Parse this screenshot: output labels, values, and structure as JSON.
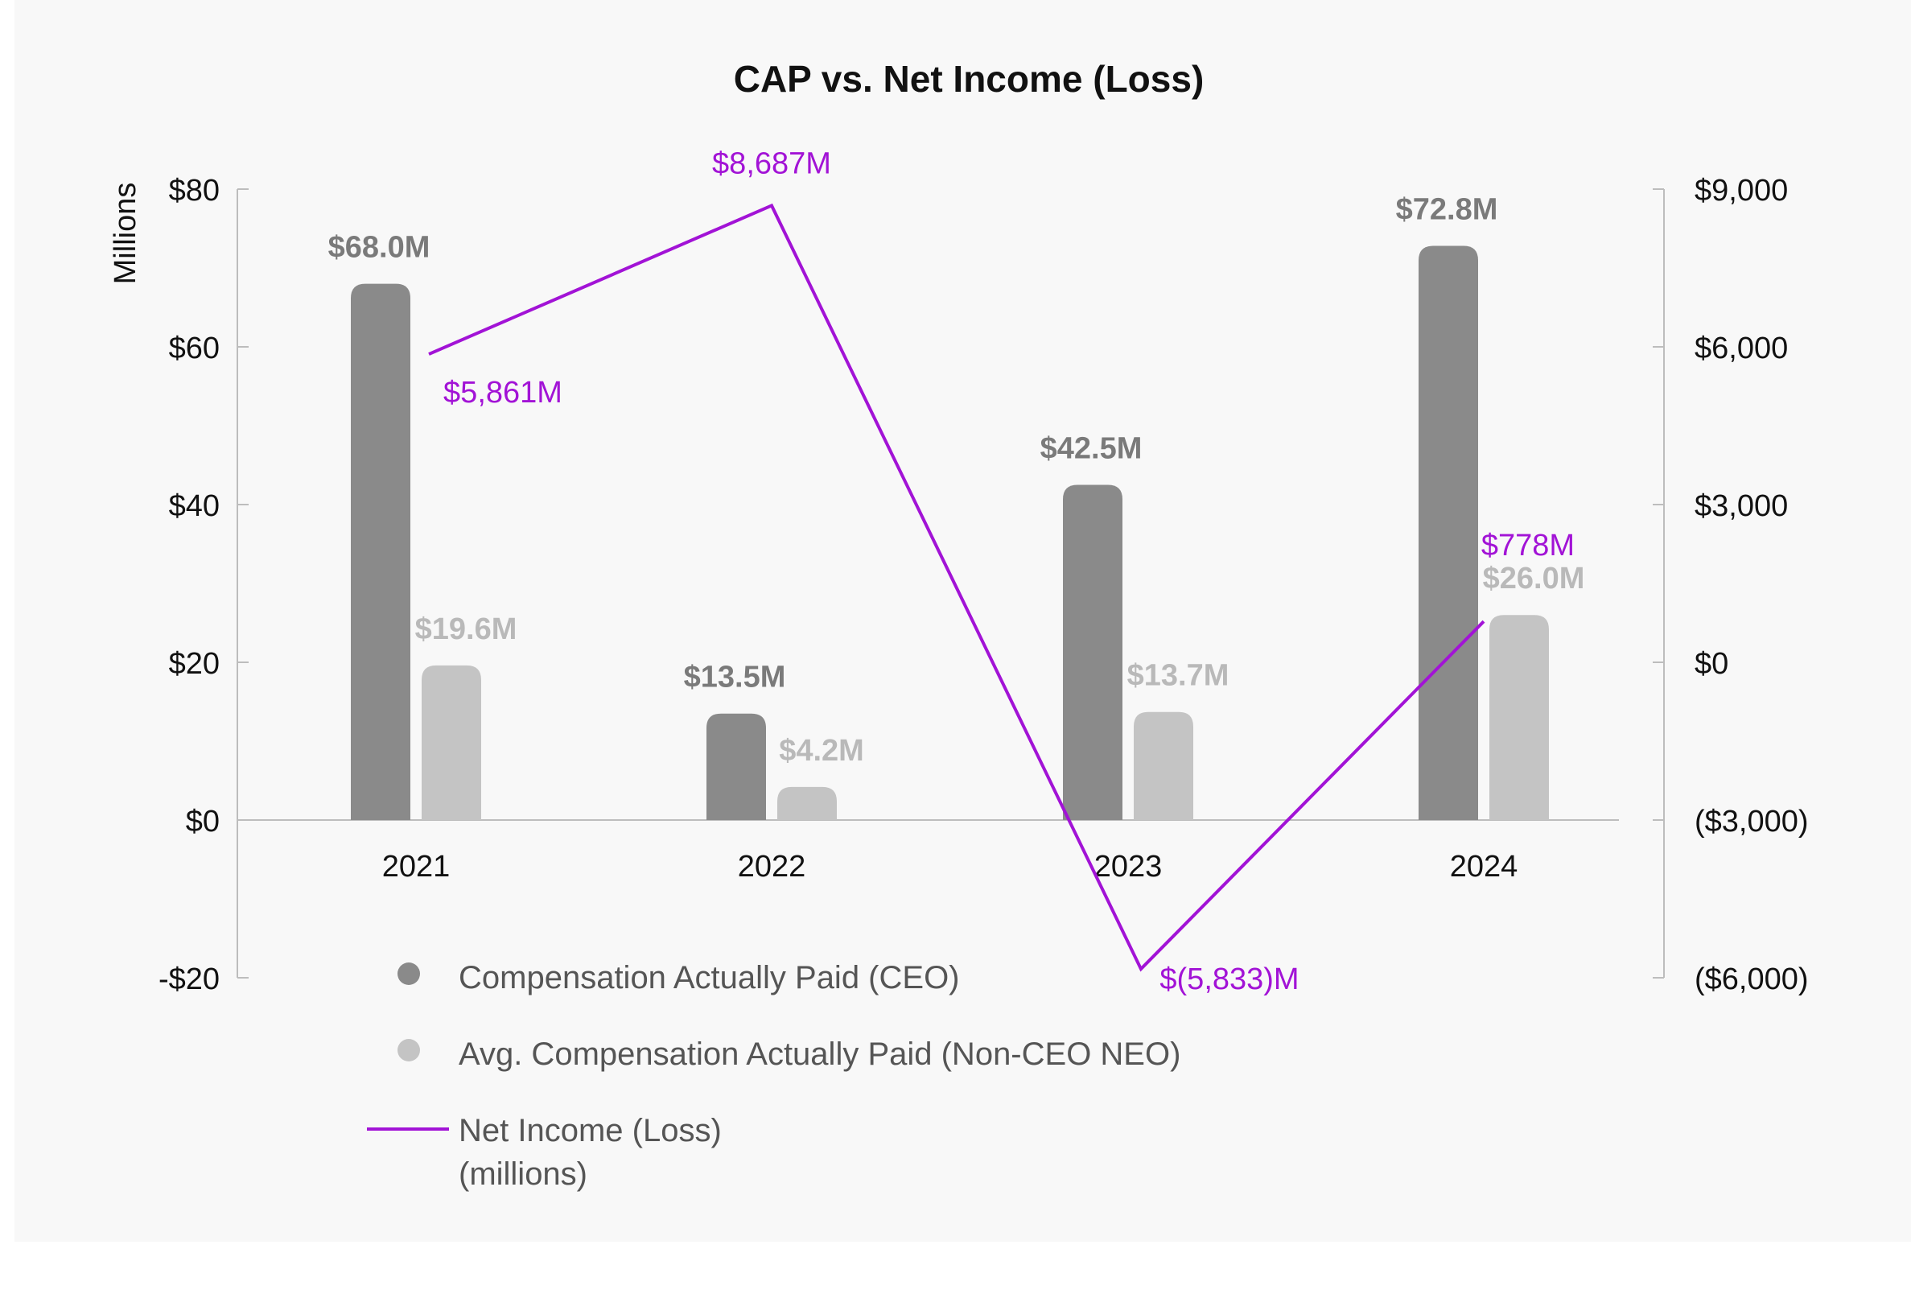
{
  "chart_data": {
    "type": "bar",
    "title": "CAP vs. Net Income (Loss)",
    "ylabel": "Millions",
    "categories": [
      "2021",
      "2022",
      "2023",
      "2024"
    ],
    "ylim": [
      -20,
      80
    ],
    "y_ticks": [
      -20,
      0,
      20,
      40,
      60,
      80
    ],
    "y_tick_labels": [
      "-$20",
      "$0",
      "$20",
      "$40",
      "$60",
      "$80"
    ],
    "y2lim": [
      -6000,
      9000
    ],
    "y2_ticks": [
      -6000,
      -3000,
      0,
      3000,
      6000,
      9000
    ],
    "y2_tick_labels": [
      "($6,000)",
      "($3,000)",
      "$0",
      "$3,000",
      "$6,000",
      "$9,000"
    ],
    "series": [
      {
        "name": "Compensation Actually Paid (CEO)",
        "kind": "bar",
        "axis": "left",
        "color": "#8a8a8a",
        "values": [
          68.0,
          13.5,
          42.5,
          72.8
        ],
        "labels": [
          "$68.0M",
          "$13.5M",
          "$42.5M",
          "$72.8M"
        ]
      },
      {
        "name": "Avg. Compensation Actually Paid (Non-CEO NEO)",
        "kind": "bar",
        "axis": "left",
        "color": "#c4c4c4",
        "values": [
          19.6,
          4.2,
          13.7,
          26.0
        ],
        "labels": [
          "$19.6M",
          "$4.2M",
          "$13.7M",
          "$26.0M"
        ]
      },
      {
        "name": "Net Income (Loss) (millions)",
        "kind": "line",
        "axis": "right",
        "color": "#a213d6",
        "values": [
          5861,
          8687,
          -5833,
          778
        ],
        "labels": [
          "$5,861M",
          "$8,687M",
          "$(5,833)M",
          "$778M"
        ]
      }
    ],
    "legend": {
      "position": "bottom-left",
      "entries": [
        "Compensation Actually Paid (CEO)",
        "Avg. Compensation Actually Paid (Non-CEO NEO)",
        "Net Income (Loss)",
        "(millions)"
      ]
    },
    "grid": false
  },
  "colors": {
    "ceo_bar": "#8a8a8a",
    "neo_bar": "#c4c4c4",
    "net_income_line": "#a213d6",
    "ceo_label": "#7a7a7a",
    "neo_label": "#b9b9b9",
    "axis": "#bdbdbd",
    "background": "#f8f8f8"
  }
}
